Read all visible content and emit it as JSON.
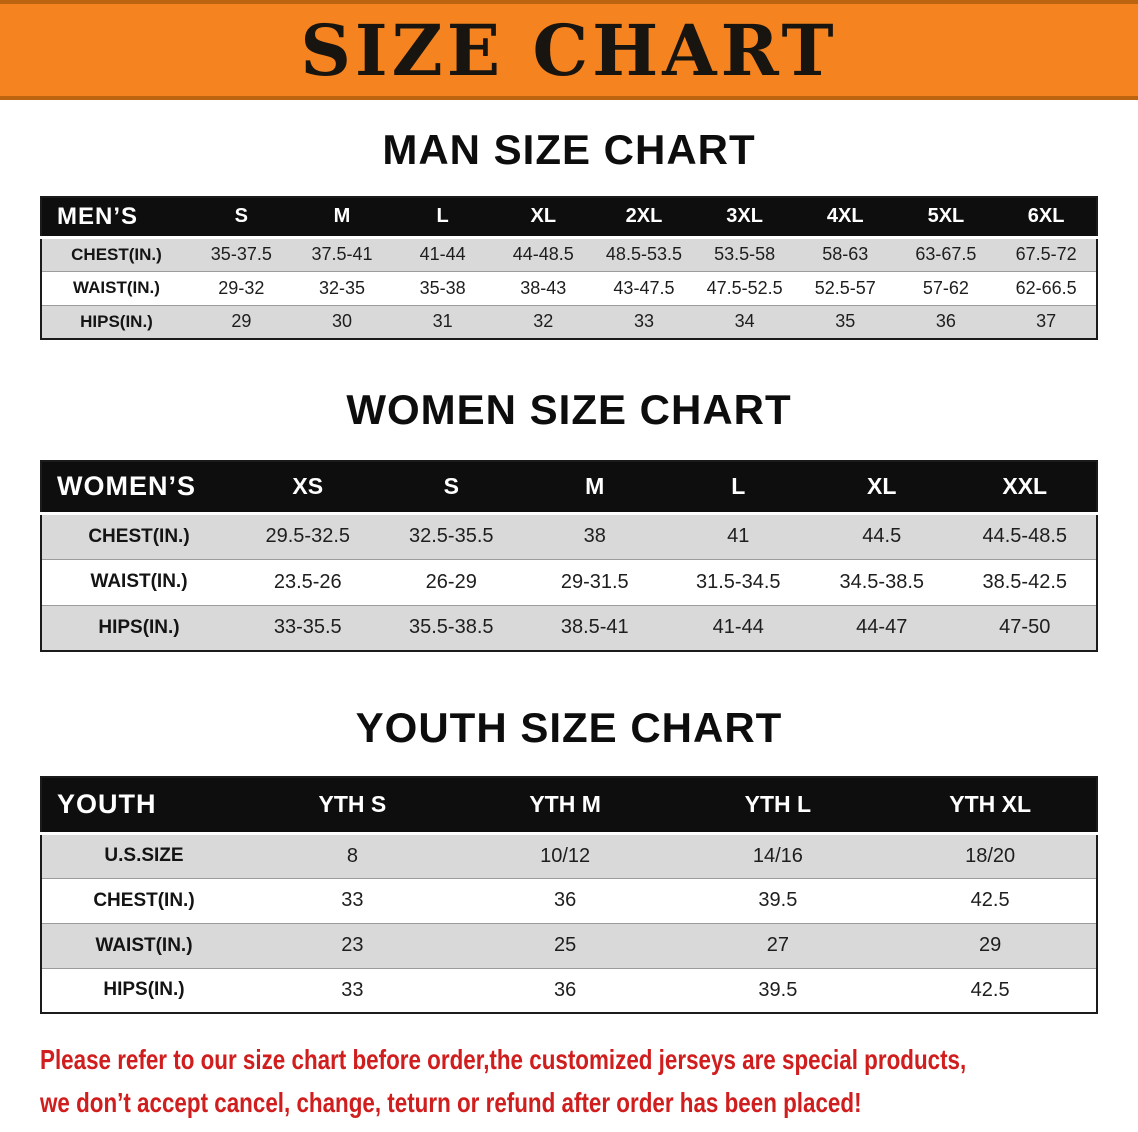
{
  "banner": {
    "title": "SIZE CHART"
  },
  "man": {
    "title": "MAN SIZE CHART",
    "table": {
      "corner": "MEN’S",
      "columns": [
        "S",
        "M",
        "L",
        "XL",
        "2XL",
        "3XL",
        "4XL",
        "5XL",
        "6XL"
      ],
      "rows": [
        {
          "label": "CHEST(IN.)",
          "values": [
            "35-37.5",
            "37.5-41",
            "41-44",
            "44-48.5",
            "48.5-53.5",
            "53.5-58",
            "58-63",
            "63-67.5",
            "67.5-72"
          ]
        },
        {
          "label": "WAIST(IN.)",
          "values": [
            "29-32",
            "32-35",
            "35-38",
            "38-43",
            "43-47.5",
            "47.5-52.5",
            "52.5-57",
            "57-62",
            "62-66.5"
          ]
        },
        {
          "label": "HIPS(IN.)",
          "values": [
            "29",
            "30",
            "31",
            "32",
            "33",
            "34",
            "35",
            "36",
            "37"
          ]
        }
      ]
    }
  },
  "women": {
    "title": "WOMEN SIZE CHART",
    "table": {
      "corner": "WOMEN’S",
      "columns": [
        "XS",
        "S",
        "M",
        "L",
        "XL",
        "XXL"
      ],
      "rows": [
        {
          "label": "CHEST(IN.)",
          "values": [
            "29.5-32.5",
            "32.5-35.5",
            "38",
            "41",
            "44.5",
            "44.5-48.5"
          ]
        },
        {
          "label": "WAIST(IN.)",
          "values": [
            "23.5-26",
            "26-29",
            "29-31.5",
            "31.5-34.5",
            "34.5-38.5",
            "38.5-42.5"
          ]
        },
        {
          "label": "HIPS(IN.)",
          "values": [
            "33-35.5",
            "35.5-38.5",
            "38.5-41",
            "41-44",
            "44-47",
            "47-50"
          ]
        }
      ]
    }
  },
  "youth": {
    "title": "YOUTH SIZE CHART",
    "table": {
      "corner": "YOUTH",
      "columns": [
        "YTH S",
        "YTH M",
        "YTH L",
        "YTH XL"
      ],
      "rows": [
        {
          "label": "U.S.SIZE",
          "values": [
            "8",
            "10/12",
            "14/16",
            "18/20"
          ]
        },
        {
          "label": "CHEST(IN.)",
          "values": [
            "33",
            "36",
            "39.5",
            "42.5"
          ]
        },
        {
          "label": "WAIST(IN.)",
          "values": [
            "23",
            "25",
            "27",
            "29"
          ]
        },
        {
          "label": "HIPS(IN.)",
          "values": [
            "33",
            "36",
            "39.5",
            "42.5"
          ]
        }
      ]
    }
  },
  "footer": {
    "line1": "Please refer to our size chart before order,the customized jerseys are special products,",
    "line2": "we don’t accept cancel, change, teturn or refund after order has been placed!"
  },
  "colors": {
    "banner_bg": "#f5831f",
    "banner_text": "#18140f",
    "table_header_bg": "#0e0e0e",
    "table_header_text": "#ffffff",
    "row_shade": "#d9d9d9",
    "disclaimer_text": "#d01d1d"
  }
}
